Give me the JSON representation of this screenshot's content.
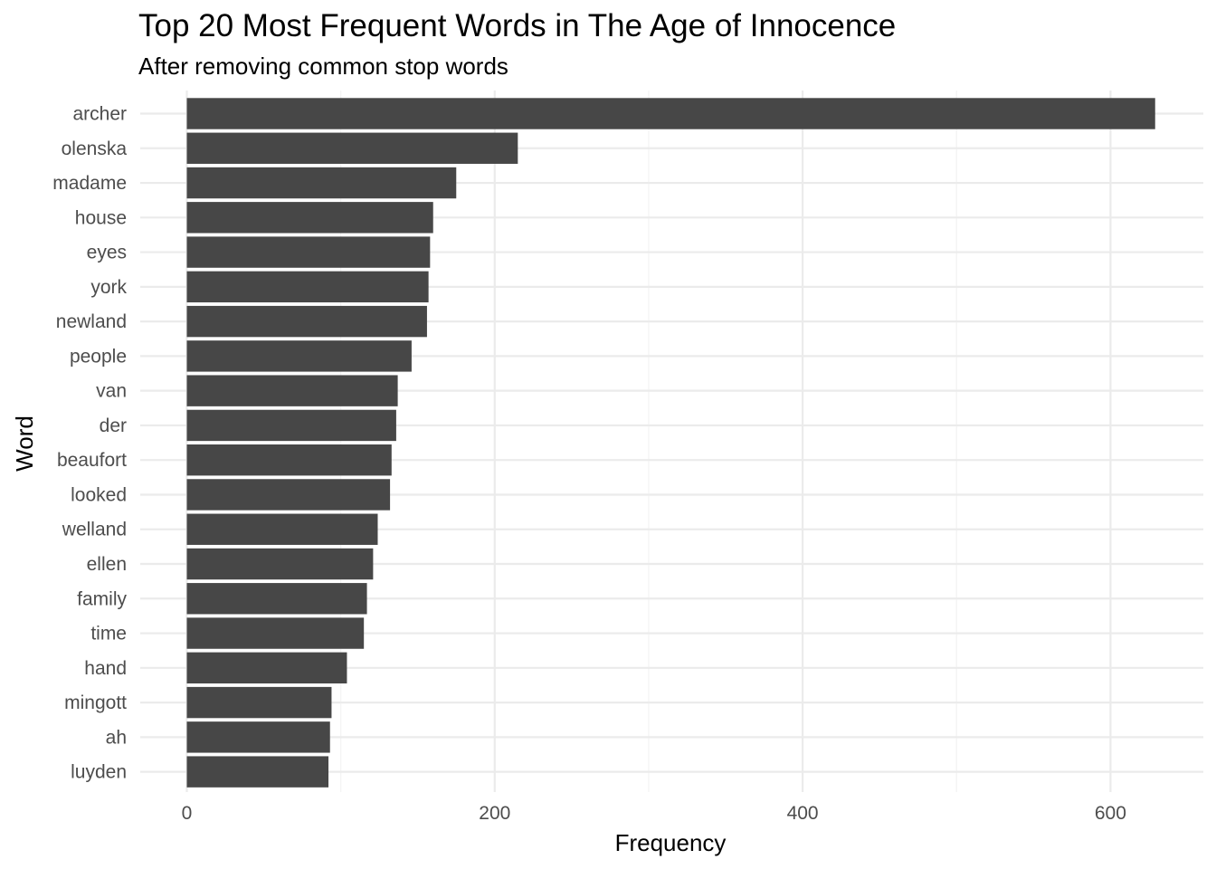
{
  "chart_data": {
    "type": "bar",
    "orientation": "horizontal",
    "title": "Top 20 Most Frequent Words in The Age of Innocence",
    "subtitle": "After removing common stop words",
    "xlabel": "Frequency",
    "ylabel": "Word",
    "xlim": [
      0,
      650
    ],
    "xticks": [
      0,
      200,
      400,
      600
    ],
    "grid": true,
    "bar_color": "#474747",
    "categories": [
      "archer",
      "olenska",
      "madame",
      "house",
      "eyes",
      "york",
      "newland",
      "people",
      "van",
      "der",
      "beaufort",
      "looked",
      "welland",
      "ellen",
      "family",
      "time",
      "hand",
      "mingott",
      "ah",
      "luyden"
    ],
    "values": [
      629,
      215,
      175,
      160,
      158,
      157,
      156,
      146,
      137,
      136,
      133,
      132,
      124,
      121,
      117,
      115,
      104,
      94,
      93,
      92
    ]
  }
}
